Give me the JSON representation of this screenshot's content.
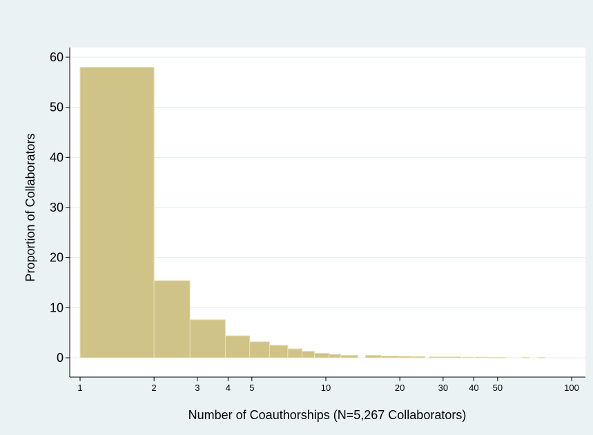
{
  "chart_data": {
    "type": "bar",
    "title": "",
    "xlabel": "Number of Coauthorships (N=5,267 Collaborators)",
    "ylabel": "Proportion of Collaborators",
    "x_scale": "log",
    "xlim": [
      1,
      100
    ],
    "ylim": [
      0,
      60
    ],
    "x_ticks": [
      1,
      2,
      3,
      4,
      5,
      10,
      20,
      30,
      40,
      50,
      100
    ],
    "y_ticks": [
      0,
      10,
      20,
      30,
      40,
      50,
      60
    ],
    "grid": "horizontal",
    "legend": "none",
    "bar_color": "#cfc387",
    "bar_edge_color": "#e8e1b8",
    "bins": [
      {
        "x0": 1,
        "x1": 2,
        "value": 58.0
      },
      {
        "x0": 2,
        "x1": 2.8,
        "value": 15.4
      },
      {
        "x0": 2.8,
        "x1": 3.9,
        "value": 7.6
      },
      {
        "x0": 3.9,
        "x1": 4.9,
        "value": 4.4
      },
      {
        "x0": 4.9,
        "x1": 5.9,
        "value": 3.2
      },
      {
        "x0": 5.9,
        "x1": 7.0,
        "value": 2.5
      },
      {
        "x0": 7.0,
        "x1": 8.0,
        "value": 1.8
      },
      {
        "x0": 8.0,
        "x1": 9.0,
        "value": 1.3
      },
      {
        "x0": 9.0,
        "x1": 10.3,
        "value": 0.9
      },
      {
        "x0": 10.3,
        "x1": 11.5,
        "value": 0.7
      },
      {
        "x0": 11.5,
        "x1": 13.5,
        "value": 0.5
      },
      {
        "x0": 14.5,
        "x1": 16.8,
        "value": 0.5
      },
      {
        "x0": 16.8,
        "x1": 19.7,
        "value": 0.35
      },
      {
        "x0": 19.7,
        "x1": 22.4,
        "value": 0.3
      },
      {
        "x0": 22.4,
        "x1": 25.3,
        "value": 0.25
      },
      {
        "x0": 26.4,
        "x1": 31.0,
        "value": 0.2
      },
      {
        "x0": 31.0,
        "x1": 35.5,
        "value": 0.2
      },
      {
        "x0": 36.0,
        "x1": 40.0,
        "value": 0.15
      },
      {
        "x0": 40.5,
        "x1": 45.5,
        "value": 0.15
      },
      {
        "x0": 46.0,
        "x1": 50.5,
        "value": 0.1
      },
      {
        "x0": 51.0,
        "x1": 54.0,
        "value": 0.1
      },
      {
        "x0": 63.0,
        "x1": 67.0,
        "value": 0.1
      },
      {
        "x0": 73.0,
        "x1": 77.5,
        "value": 0.1
      }
    ]
  }
}
